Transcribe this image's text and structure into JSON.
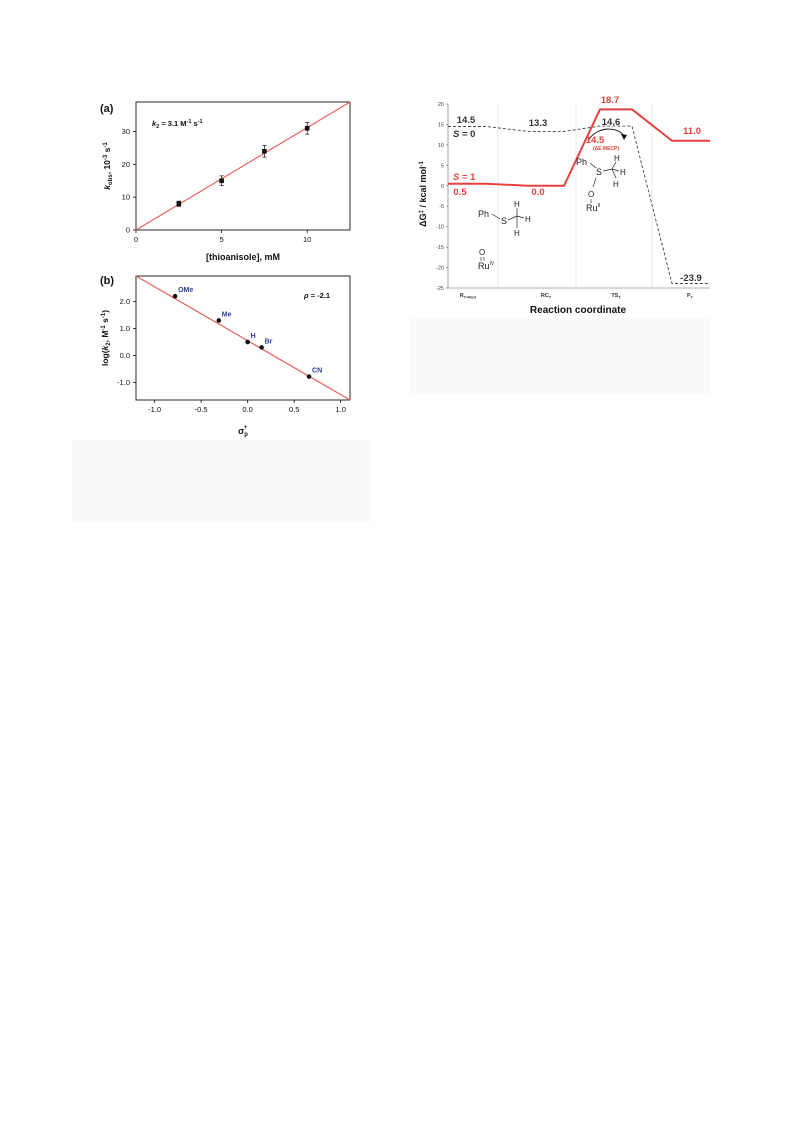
{
  "chart_data": [
    {
      "type": "scatter",
      "panel_label": "(a)",
      "annotation": {
        "k": "k",
        "sub": "2",
        "eq": " = 3.1 M",
        "exp1": "-1",
        "s": " s",
        "exp2": "-1"
      },
      "xlabel": "[thioanisole], mM",
      "ylabel": {
        "k": "k",
        "sub": "obs",
        "rest": ", 10",
        "exp": "-3",
        "unit": " s",
        "exp2": "-1"
      },
      "xlim": [
        0,
        12.5
      ],
      "ylim": [
        0,
        39
      ],
      "x_ticks": [
        "0",
        "5",
        "10"
      ],
      "y_ticks": [
        "0",
        "10",
        "20",
        "30"
      ],
      "points": [
        {
          "x": 2.5,
          "y": 8.0,
          "err": 0.8
        },
        {
          "x": 5.0,
          "y": 15.0,
          "err": 1.5
        },
        {
          "x": 7.5,
          "y": 24.0,
          "err": 1.8
        },
        {
          "x": 10.0,
          "y": 31.0,
          "err": 1.8
        }
      ],
      "fit": {
        "x": [
          0,
          12.5
        ],
        "y": [
          0,
          39
        ]
      },
      "colors": {
        "fit": "#e8615e",
        "points": "#111111"
      }
    },
    {
      "type": "scatter",
      "panel_label": "(b)",
      "annotation": {
        "rho": "ρ",
        "text": " = -2.1"
      },
      "xlabel": {
        "sigma": "σ",
        "sub": "p",
        "sup": "+"
      },
      "ylabel": {
        "pre": "log(",
        "k": "k",
        "sub": "2",
        "rest": ", M",
        "exp": "-1",
        "s": " s",
        "exp2": "-1",
        "close": ")"
      },
      "xlim": [
        -1.2,
        1.1
      ],
      "ylim": [
        -1.65,
        2.95
      ],
      "x_ticks": [
        "-1.0",
        "-0.5",
        "0.0",
        "0.5",
        "1.0"
      ],
      "y_ticks": [
        "-1.0",
        "0.0",
        "1.0",
        "2.0"
      ],
      "points": [
        {
          "label": "OMe",
          "x": -0.78,
          "y": 2.2
        },
        {
          "label": "Me",
          "x": -0.31,
          "y": 1.3
        },
        {
          "label": "H",
          "x": 0.0,
          "y": 0.5
        },
        {
          "label": "Br",
          "x": 0.15,
          "y": 0.3
        },
        {
          "label": "CN",
          "x": 0.66,
          "y": -0.78
        }
      ],
      "fit": {
        "x": [
          -1.2,
          1.1
        ],
        "y": [
          2.95,
          -1.65
        ]
      },
      "colors": {
        "fit": "#e8615e",
        "points": "#111111",
        "labels": "#2b3a9a"
      }
    },
    {
      "type": "line",
      "xlabel": "Reaction coordinate",
      "ylabel": {
        "pre": "ΔG",
        "sup": "‡",
        "rest": " / kcal mol",
        "exp": "-1"
      },
      "ylim": [
        -25,
        20
      ],
      "y_ticks": [
        "20",
        "15",
        "10",
        "5",
        "0",
        "-5",
        "-10",
        "-15",
        "-20",
        "-25"
      ],
      "categories": [
        {
          "main": "R",
          "sub": "T+RuO"
        },
        {
          "main": "RC",
          "sub": "T"
        },
        {
          "main": "TS",
          "sub": "T"
        },
        {
          "main": "P",
          "sub": "T"
        }
      ],
      "series": [
        {
          "name": "S = 1",
          "name_s": "S",
          "name_rest": " = 1",
          "values": [
            0.5,
            0.0,
            18.7,
            11.0
          ],
          "labels": [
            "0.5",
            "0.0",
            "18.7",
            "11.0"
          ],
          "color": "#e8403e"
        },
        {
          "name": "S = 0",
          "name_s": "S",
          "name_rest": " = 0",
          "values": [
            14.5,
            13.3,
            14.6,
            -23.9
          ],
          "labels": [
            "14.5",
            "13.3",
            "14.6",
            "-23.9"
          ],
          "color": "#444444"
        }
      ],
      "mecp": {
        "value": "14.5",
        "note": "(ΔE MECP)"
      },
      "structure_labels": {
        "ph": "Ph",
        "s": "S",
        "h": "H",
        "o": "O",
        "ru": "Ru",
        "ru_ox_iv": "IV",
        "ru_ox_ii": "II"
      }
    }
  ]
}
